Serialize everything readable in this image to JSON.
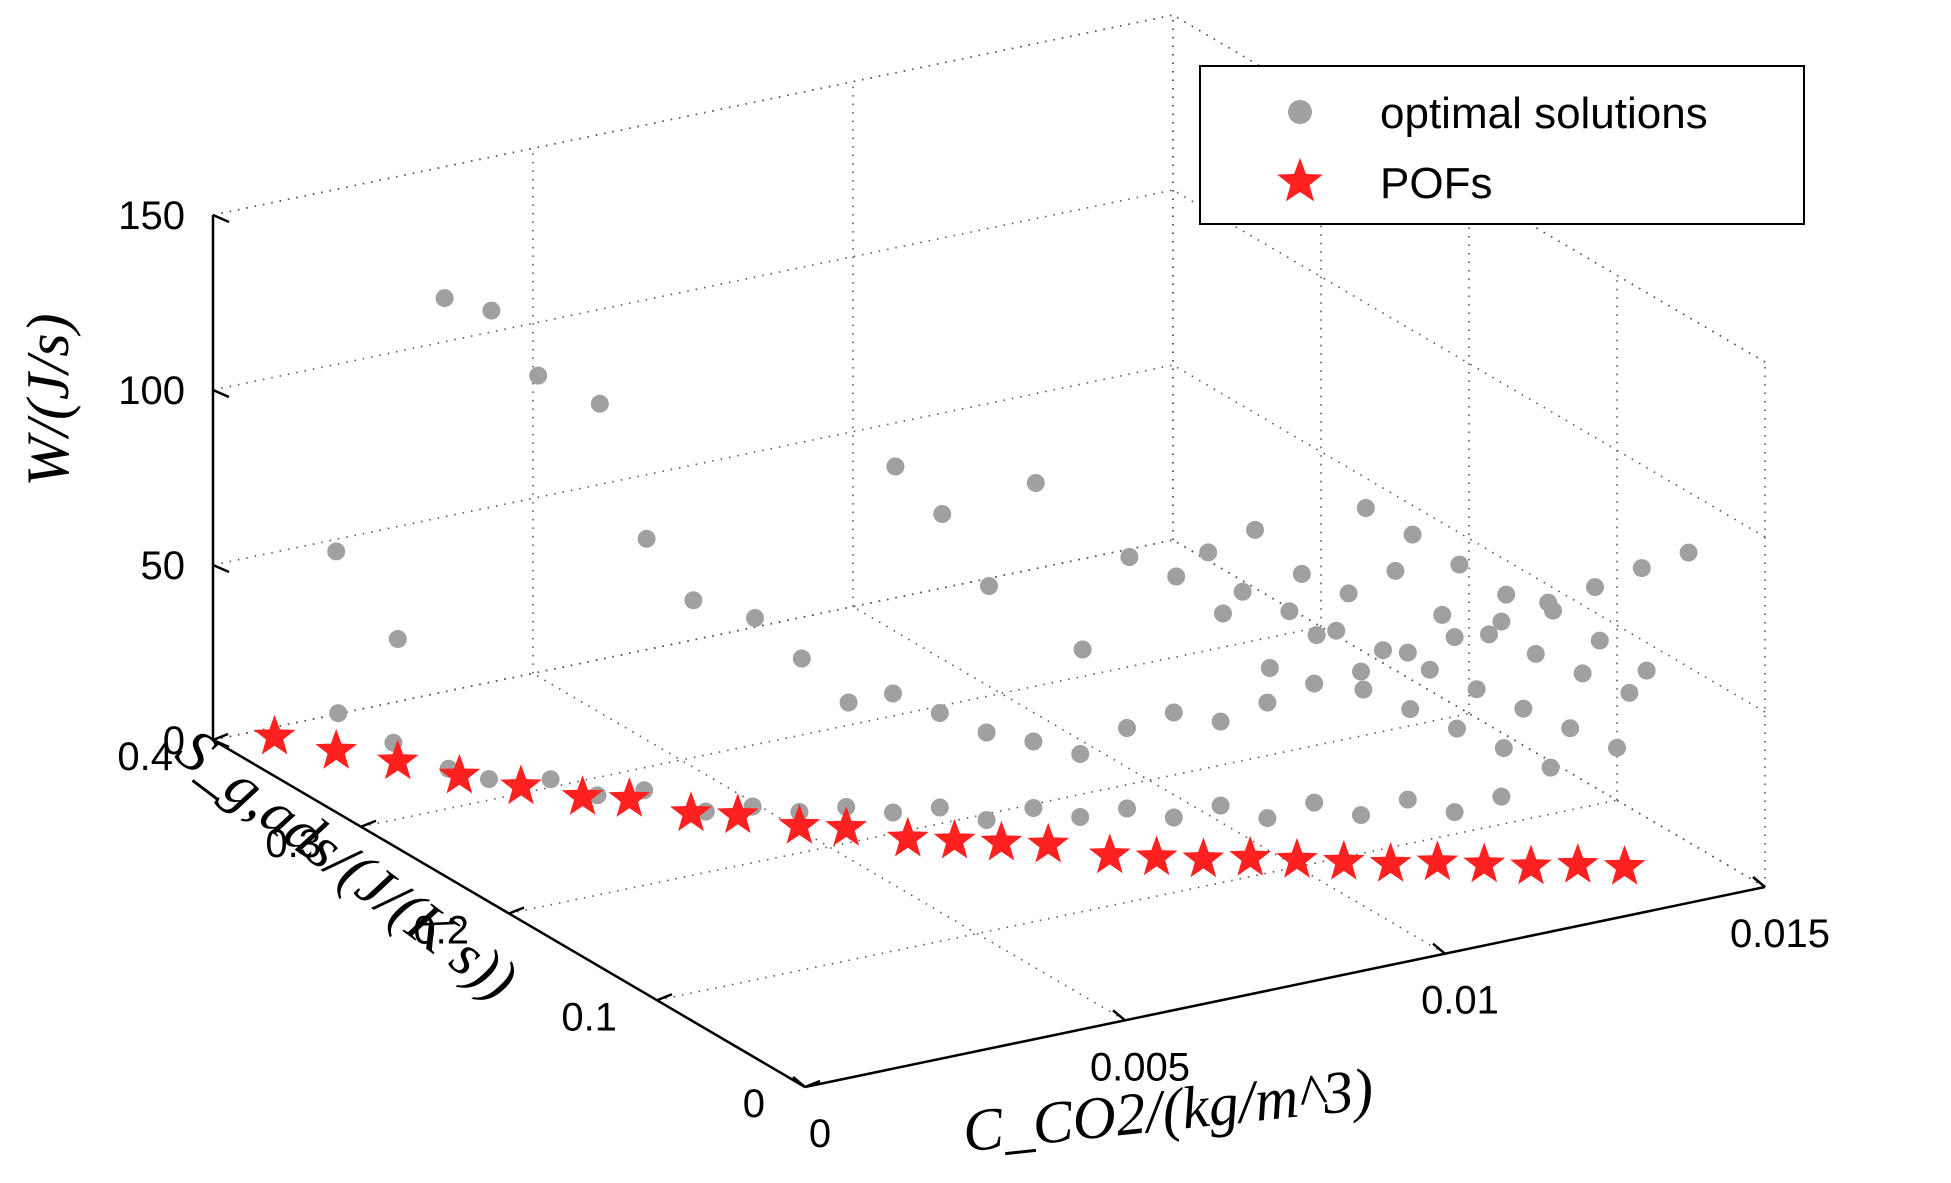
{
  "chart_data": {
    "type": "scatter3d",
    "title": "",
    "x_axis": {
      "label": "C_CO2/(kg/m^3)",
      "range": [
        0,
        0.015
      ],
      "ticks": [
        0,
        0.005,
        0.01,
        0.015
      ],
      "tick_labels": [
        "0",
        "0.005",
        "0.01",
        "0.015"
      ]
    },
    "y_axis": {
      "label": "S_g,ads/(J/(K s))",
      "range": [
        0,
        0.4
      ],
      "ticks": [
        0,
        0.1,
        0.2,
        0.3,
        0.4
      ],
      "tick_labels": [
        "0",
        "0.1",
        "0.2",
        "0.3",
        "0.4"
      ]
    },
    "z_axis": {
      "label": "W/(J/s)",
      "range": [
        0,
        150
      ],
      "ticks": [
        0,
        50,
        100,
        150
      ],
      "tick_labels": [
        "0",
        "50",
        "100",
        "150"
      ]
    },
    "grid": true,
    "legend": {
      "position": "top-right",
      "entries": [
        "optimal solutions",
        "POFs"
      ]
    },
    "colors": {
      "optimal": "#a0a0a0",
      "pof": "#ff2020",
      "axis": "#000000"
    },
    "series": [
      {
        "name": "optimal solutions",
        "marker": "circle",
        "points": [
          [
            0.0008,
            0.35,
            17
          ],
          [
            0.0012,
            0.33,
            12
          ],
          [
            0.0016,
            0.31,
            8
          ],
          [
            0.002,
            0.3,
            6
          ],
          [
            0.0025,
            0.28,
            9
          ],
          [
            0.003,
            0.27,
            5
          ],
          [
            0.0035,
            0.26,
            7
          ],
          [
            0.004,
            0.24,
            4
          ],
          [
            0.0045,
            0.23,
            6
          ],
          [
            0.005,
            0.22,
            5
          ],
          [
            0.0055,
            0.21,
            7
          ],
          [
            0.006,
            0.2,
            6
          ],
          [
            0.0065,
            0.19,
            8
          ],
          [
            0.007,
            0.18,
            5
          ],
          [
            0.0075,
            0.17,
            9
          ],
          [
            0.008,
            0.16,
            7
          ],
          [
            0.0085,
            0.15,
            10
          ],
          [
            0.009,
            0.14,
            8
          ],
          [
            0.0095,
            0.13,
            12
          ],
          [
            0.01,
            0.12,
            9
          ],
          [
            0.0105,
            0.11,
            14
          ],
          [
            0.011,
            0.1,
            11
          ],
          [
            0.0115,
            0.09,
            16
          ],
          [
            0.012,
            0.08,
            13
          ],
          [
            0.0125,
            0.07,
            18
          ],
          [
            0.001,
            0.36,
            60
          ],
          [
            0.0015,
            0.34,
            38
          ],
          [
            0.002,
            0.33,
            136
          ],
          [
            0.0025,
            0.32,
            133
          ],
          [
            0.003,
            0.31,
            115
          ],
          [
            0.0035,
            0.29,
            110
          ],
          [
            0.004,
            0.28,
            72
          ],
          [
            0.0045,
            0.27,
            55
          ],
          [
            0.005,
            0.25,
            53
          ],
          [
            0.0055,
            0.24,
            42
          ],
          [
            0.006,
            0.23,
            30
          ],
          [
            0.0065,
            0.22,
            98
          ],
          [
            0.007,
            0.21,
            85
          ],
          [
            0.0075,
            0.2,
            65
          ],
          [
            0.008,
            0.19,
            95
          ],
          [
            0.0085,
            0.18,
            48
          ],
          [
            0.009,
            0.17,
            75
          ],
          [
            0.0095,
            0.16,
            70
          ],
          [
            0.01,
            0.15,
            60
          ],
          [
            0.0105,
            0.14,
            45
          ],
          [
            0.011,
            0.13,
            55
          ],
          [
            0.0115,
            0.12,
            40
          ],
          [
            0.012,
            0.11,
            35
          ],
          [
            0.0125,
            0.1,
            30
          ],
          [
            0.013,
            0.09,
            25
          ],
          [
            0.0135,
            0.08,
            20
          ],
          [
            0.006,
            0.2,
            40
          ],
          [
            0.0065,
            0.19,
            35
          ],
          [
            0.007,
            0.18,
            30
          ],
          [
            0.0075,
            0.17,
            28
          ],
          [
            0.008,
            0.16,
            25
          ],
          [
            0.0085,
            0.15,
            33
          ],
          [
            0.009,
            0.14,
            38
          ],
          [
            0.0095,
            0.13,
            36
          ],
          [
            0.01,
            0.12,
            42
          ],
          [
            0.0105,
            0.11,
            48
          ],
          [
            0.011,
            0.1,
            52
          ],
          [
            0.0115,
            0.09,
            58
          ],
          [
            0.012,
            0.08,
            63
          ],
          [
            0.0125,
            0.07,
            68
          ],
          [
            0.013,
            0.06,
            74
          ],
          [
            0.0135,
            0.05,
            79
          ],
          [
            0.014,
            0.04,
            85
          ],
          [
            0.0145,
            0.03,
            90
          ],
          [
            0.01,
            0.16,
            75
          ],
          [
            0.0105,
            0.15,
            82
          ],
          [
            0.011,
            0.14,
            70
          ],
          [
            0.0115,
            0.13,
            65
          ],
          [
            0.012,
            0.12,
            72
          ],
          [
            0.0125,
            0.11,
            60
          ],
          [
            0.013,
            0.1,
            55
          ],
          [
            0.0135,
            0.09,
            50
          ],
          [
            0.014,
            0.08,
            45
          ],
          [
            0.0145,
            0.07,
            40
          ],
          [
            0.012,
            0.14,
            85
          ],
          [
            0.0125,
            0.13,
            78
          ],
          [
            0.013,
            0.12,
            70
          ],
          [
            0.0135,
            0.11,
            62
          ],
          [
            0.014,
            0.1,
            58
          ],
          [
            0.0145,
            0.09,
            50
          ],
          [
            0.015,
            0.08,
            42
          ],
          [
            0.011,
            0.18,
            55
          ],
          [
            0.0115,
            0.17,
            50
          ],
          [
            0.012,
            0.16,
            45
          ],
          [
            0.0125,
            0.15,
            40
          ],
          [
            0.013,
            0.14,
            35
          ],
          [
            0.0135,
            0.13,
            30
          ],
          [
            0.014,
            0.12,
            25
          ],
          [
            0.0145,
            0.11,
            20
          ],
          [
            0.015,
            0.1,
            15
          ]
        ]
      },
      {
        "name": "POFs",
        "marker": "star",
        "points": [
          [
            0.0005,
            0.38,
            4
          ],
          [
            0.001,
            0.36,
            3
          ],
          [
            0.0015,
            0.34,
            3
          ],
          [
            0.002,
            0.32,
            2
          ],
          [
            0.0025,
            0.3,
            2
          ],
          [
            0.003,
            0.28,
            2
          ],
          [
            0.0035,
            0.27,
            2
          ],
          [
            0.004,
            0.25,
            1
          ],
          [
            0.0045,
            0.24,
            1
          ],
          [
            0.005,
            0.22,
            1
          ],
          [
            0.0055,
            0.21,
            1
          ],
          [
            0.006,
            0.19,
            1
          ],
          [
            0.0065,
            0.18,
            1
          ],
          [
            0.007,
            0.17,
            1
          ],
          [
            0.0075,
            0.16,
            1
          ],
          [
            0.008,
            0.14,
            1
          ],
          [
            0.0085,
            0.13,
            1
          ],
          [
            0.009,
            0.12,
            1
          ],
          [
            0.0095,
            0.11,
            2
          ],
          [
            0.01,
            0.1,
            2
          ],
          [
            0.0105,
            0.09,
            2
          ],
          [
            0.011,
            0.08,
            2
          ],
          [
            0.0115,
            0.07,
            3
          ],
          [
            0.012,
            0.06,
            3
          ],
          [
            0.0125,
            0.05,
            3
          ],
          [
            0.013,
            0.04,
            4
          ],
          [
            0.0135,
            0.03,
            4
          ]
        ]
      }
    ]
  }
}
